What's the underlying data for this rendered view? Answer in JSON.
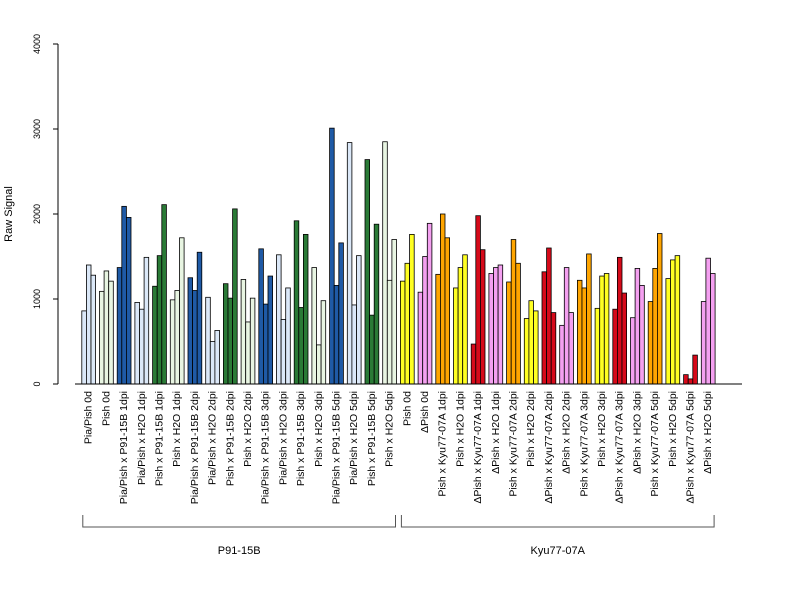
{
  "chart_data": {
    "type": "bar",
    "ylabel": "Raw Signal",
    "ylim": [
      0,
      4000
    ],
    "yticks": [
      0,
      1000,
      2000,
      3000,
      4000
    ],
    "grid": false,
    "categories": [
      "Pia/Pish 0d",
      "Pish 0d",
      "Pia/Pish x P91-15B 1dpi",
      "Pia/Pish x H2O 1dpi",
      "Pish x P91-15B 1dpi",
      "Pish x H2O 1dpi",
      "Pia/Pish x P91-15B 2dpi",
      "Pia/Pish x H2O 2dpi",
      "Pish x P91-15B 2dpi",
      "Pish x H2O 2dpi",
      "Pia/Pish x P91-15B 3dpi",
      "Pia/Pish x H2O 3dpi",
      "Pish x P91-15B 3dpi",
      "Pish x H2O 3dpi",
      "Pia/Pish x P91-15B 5dpi",
      "Pia/Pish x H2O 5dpi",
      "Pish x P91-15B 5dpi",
      "Pish x H2O 5dpi",
      "Pish 0d",
      "ΔPish 0d",
      "Pish x Kyu77-07A 1dpi",
      "Pish x H2O 1dpi",
      "ΔPish x Kyu77-07A 1dpi",
      "ΔPish x H2O 1dpi",
      "Pish x Kyu77-07A 2dpi",
      "Pish x H2O 2dpi",
      "ΔPish x Kyu77-07A 2dpi",
      "ΔPish x H2O 2dpi",
      "Pish x Kyu77-07A 3dpi",
      "Pish x H2O 3dpi",
      "ΔPish x Kyu77-07A 3dpi",
      "ΔPish x H2O 3dpi",
      "Pish x Kyu77-07A 5dpi",
      "Pish x H2O 5dpi",
      "ΔPish x Kyu77-07A 5dpi",
      "ΔPish x H2O 5dpi"
    ],
    "colors": [
      "#dbe8f8",
      "#e8f5e2",
      "#1f5aa6",
      "#dbe8f8",
      "#2a7a36",
      "#e8f5e2",
      "#1f5aa6",
      "#dbe8f8",
      "#2a7a36",
      "#e8f5e2",
      "#1f5aa6",
      "#dbe8f8",
      "#2a7a36",
      "#e8f5e2",
      "#1f5aa6",
      "#dbe8f8",
      "#2a7a36",
      "#e8f5e2",
      "#ffff22",
      "#f4a0f0",
      "#ffa500",
      "#ffff22",
      "#d60a1a",
      "#f4a0f0",
      "#ffa500",
      "#ffff22",
      "#d60a1a",
      "#f4a0f0",
      "#ffa500",
      "#ffff22",
      "#d60a1a",
      "#f4a0f0",
      "#ffa500",
      "#ffff22",
      "#d60a1a",
      "#f4a0f0"
    ],
    "values": [
      [
        860,
        1400,
        1280
      ],
      [
        1090,
        1330,
        1210
      ],
      [
        1370,
        2090,
        1960
      ],
      [
        960,
        880,
        1490
      ],
      [
        1150,
        1510,
        2110
      ],
      [
        990,
        1100,
        1720
      ],
      [
        1250,
        1100,
        1550
      ],
      [
        1020,
        500,
        630
      ],
      [
        1180,
        1010,
        2060
      ],
      [
        1230,
        730,
        1010
      ],
      [
        1590,
        940,
        1270
      ],
      [
        1520,
        760,
        1130
      ],
      [
        1920,
        900,
        1760
      ],
      [
        1370,
        460,
        980
      ],
      [
        3010,
        1160,
        1660
      ],
      [
        2840,
        930,
        1510
      ],
      [
        2640,
        810,
        1880
      ],
      [
        2850,
        1220,
        1700
      ],
      [
        1210,
        1420,
        1760
      ],
      [
        1080,
        1500,
        1890
      ],
      [
        1290,
        2000,
        1720
      ],
      [
        1130,
        1370,
        1520
      ],
      [
        470,
        1980,
        1580
      ],
      [
        1300,
        1370,
        1400
      ],
      [
        1200,
        1700,
        1420
      ],
      [
        770,
        980,
        860
      ],
      [
        1320,
        1600,
        840
      ],
      [
        690,
        1370,
        840
      ],
      [
        1220,
        1130,
        1530
      ],
      [
        890,
        1270,
        1300
      ],
      [
        880,
        1490,
        1070
      ],
      [
        780,
        1360,
        1160
      ],
      [
        970,
        1360,
        1770
      ],
      [
        1240,
        1460,
        1510
      ],
      [
        110,
        60,
        340
      ],
      [
        970,
        1480,
        1300
      ]
    ],
    "groups": [
      {
        "label": "P91-15B",
        "from": 0,
        "to": 17
      },
      {
        "label": "Kyu77-07A",
        "from": 18,
        "to": 35
      }
    ]
  }
}
